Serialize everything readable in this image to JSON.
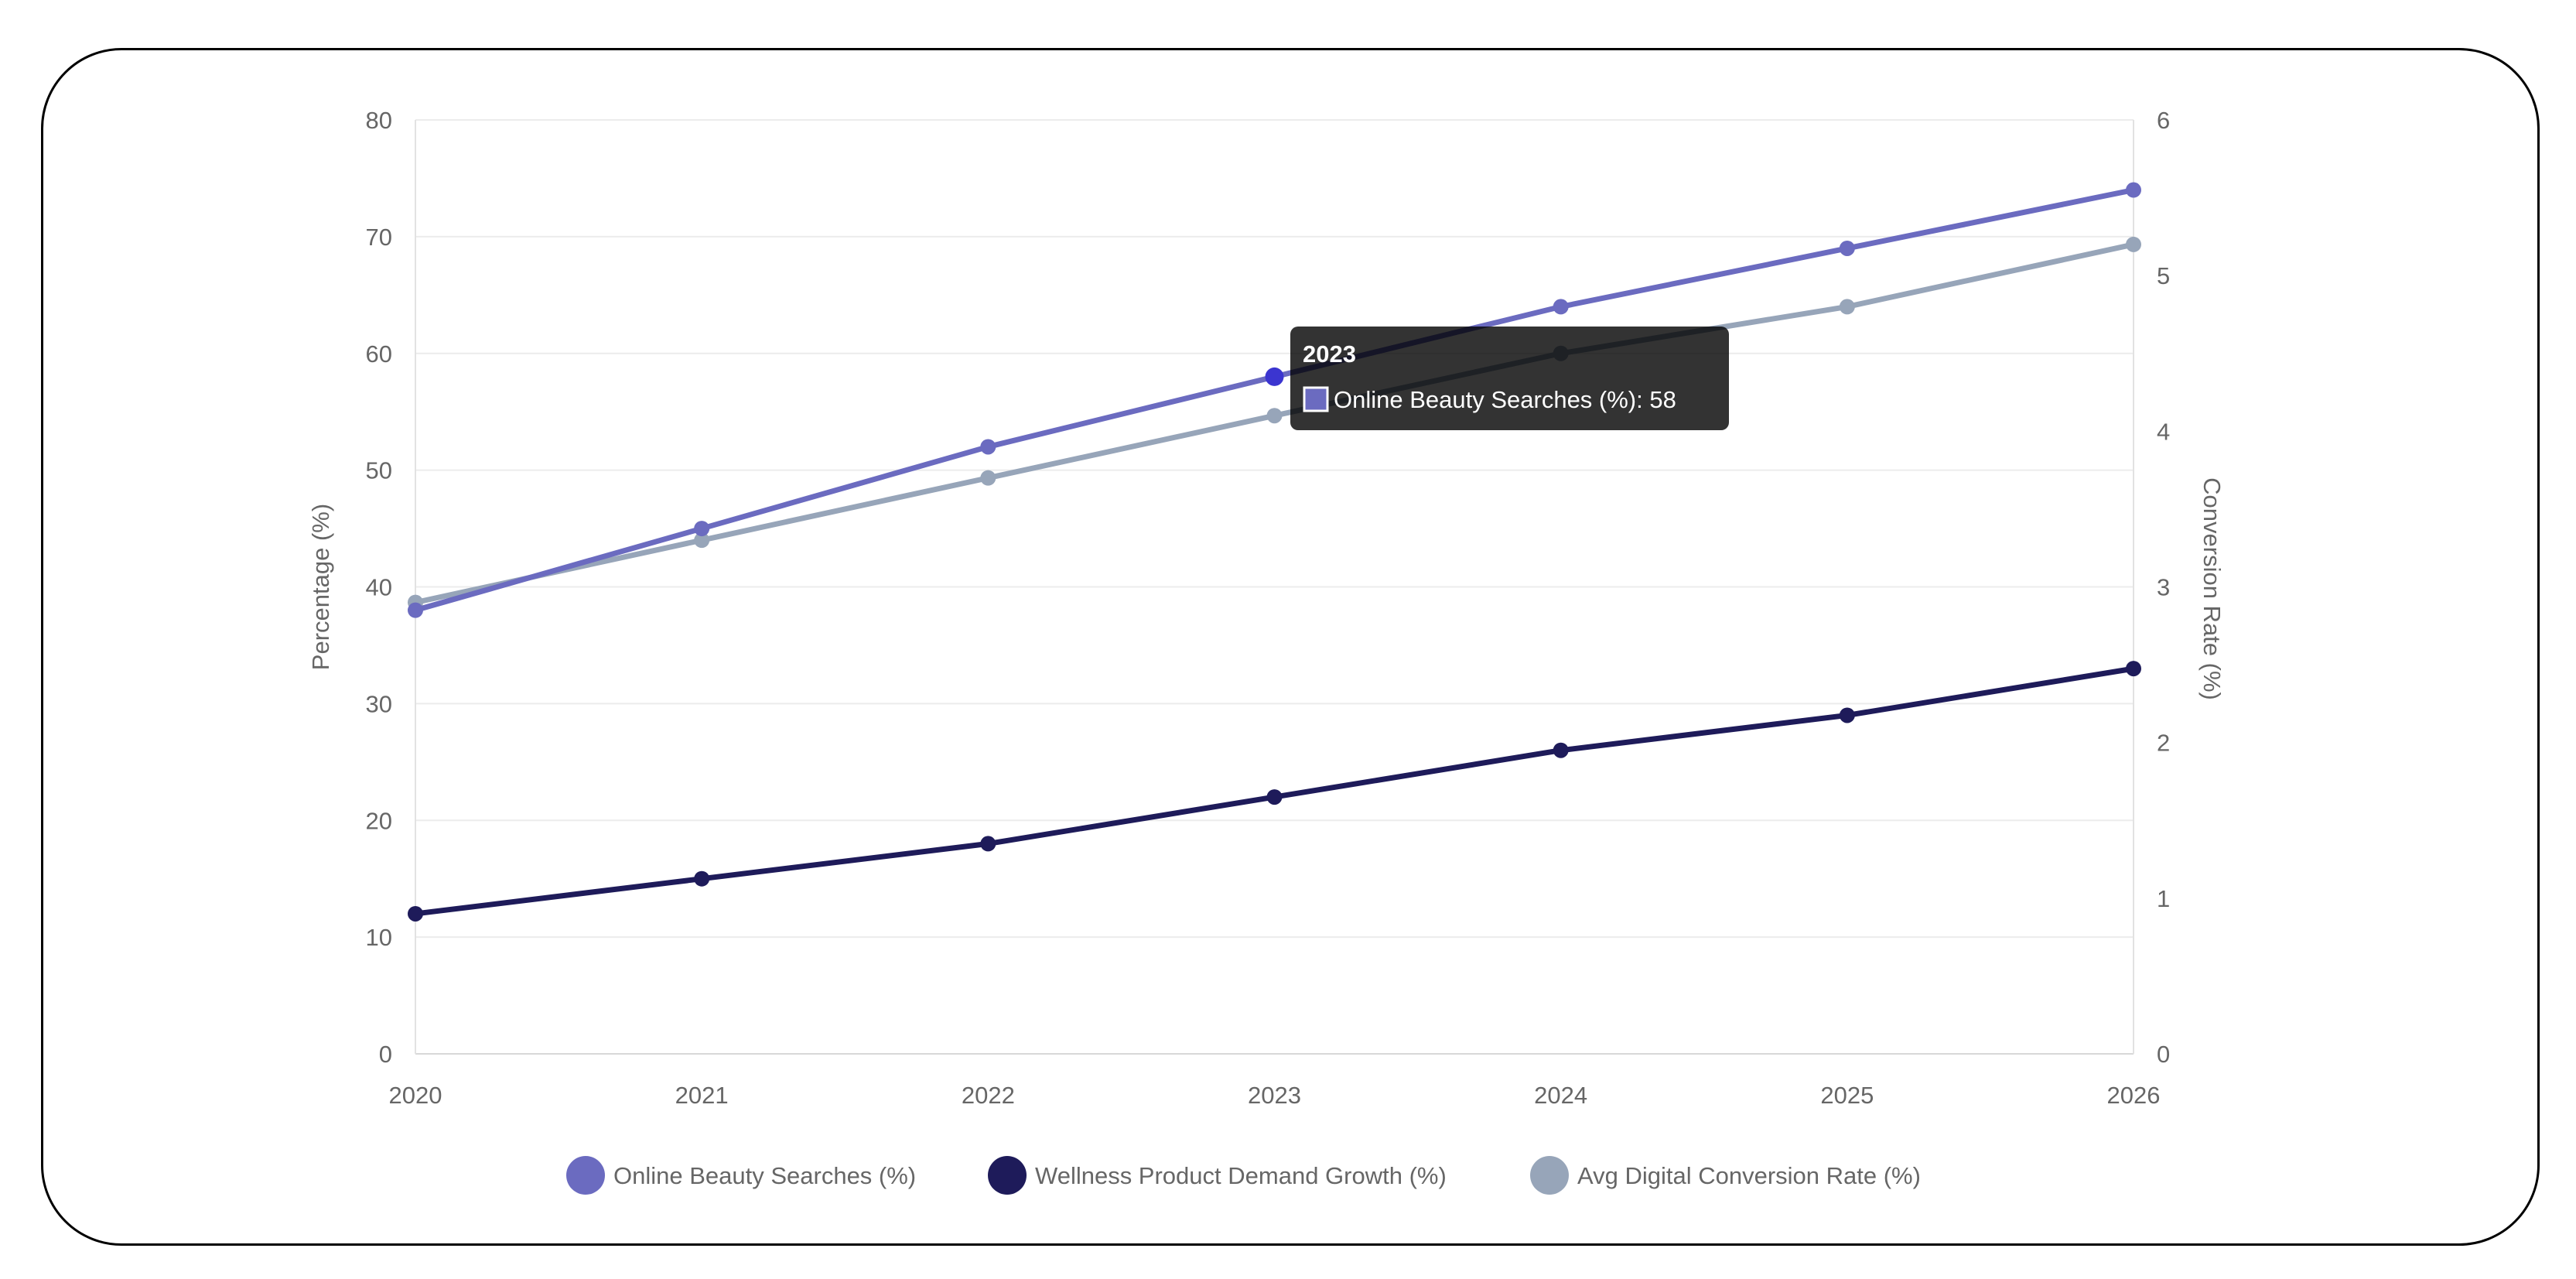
{
  "chart_data": {
    "type": "line",
    "x": [
      "2020",
      "2021",
      "2022",
      "2023",
      "2024",
      "2025",
      "2026"
    ],
    "y_left": {
      "label": "Percentage (%)",
      "min": 0,
      "max": 80,
      "ticks": [
        "0",
        "10",
        "20",
        "30",
        "40",
        "50",
        "60",
        "70",
        "80"
      ]
    },
    "y_right": {
      "label": "Conversion Rate (%)",
      "min": 0,
      "max": 6,
      "ticks": [
        "0",
        "1",
        "2",
        "3",
        "4",
        "5",
        "6"
      ]
    },
    "grid": true,
    "legend_position": "bottom",
    "series": [
      {
        "name": "Online Beauty Searches (%)",
        "axis": "left",
        "color": "#6b6bc0",
        "values": [
          38,
          45,
          52,
          58,
          64,
          69,
          74
        ]
      },
      {
        "name": "Wellness Product Demand Growth (%)",
        "axis": "left",
        "color": "#1e1b5a",
        "values": [
          12,
          15,
          18,
          22,
          26,
          29,
          33
        ]
      },
      {
        "name": "Avg Digital Conversion Rate (%)",
        "axis": "right",
        "color": "#97a5b9",
        "values": [
          2.9,
          3.3,
          3.7,
          4.1,
          4.5,
          4.8,
          5.2
        ]
      }
    ],
    "tooltip": {
      "title": "2023",
      "series_index": 0,
      "x_index": 3,
      "text": "Online Beauty Searches (%): 58",
      "highlight_color": "#3b35d0"
    }
  }
}
